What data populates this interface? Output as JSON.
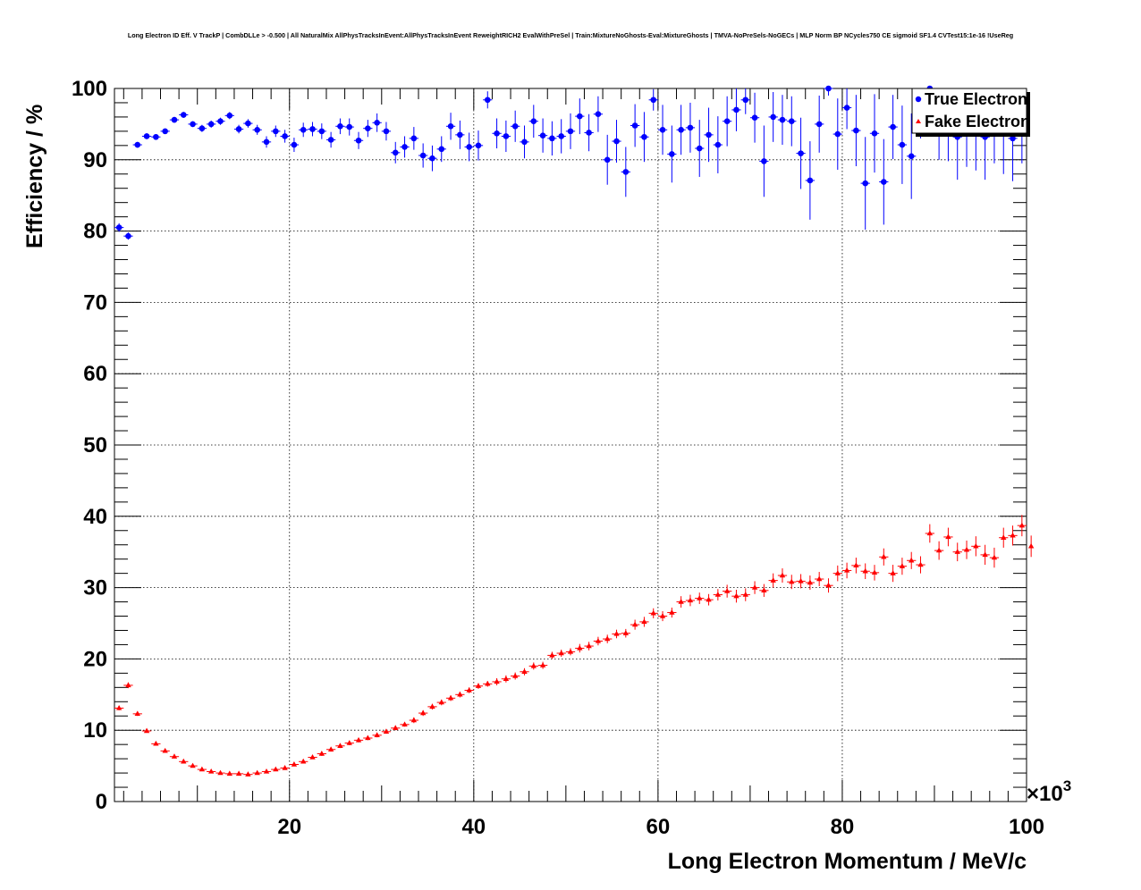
{
  "chart_data": {
    "type": "scatter",
    "title": "Long Electron ID Eff. V TrackP | CombDLLe > -0.500 | All NaturalMix AllPhysTracksInEvent:AllPhysTracksInEvent ReweightRICH2 EvalWithPreSel | Train:MixtureNoGhosts-Eval:MixtureGhosts | TMVA-NoPreSels-NoGECs | MLP Norm BP NCycles750 CE sigmoid SF1.4 CVTest15:1e-16 !UseReg",
    "xlabel": "Long Electron Momentum / MeV/c",
    "ylabel": "Efficiency / %",
    "x_multiplier_label": "×10",
    "x_multiplier_exp": "3",
    "xlim": [
      1000,
      100000
    ],
    "ylim": [
      0,
      100
    ],
    "x_ticks": [
      20000,
      40000,
      60000,
      80000,
      100000
    ],
    "x_tick_labels": [
      "20",
      "40",
      "60",
      "80",
      "100"
    ],
    "y_ticks": [
      0,
      10,
      20,
      30,
      40,
      50,
      60,
      70,
      80,
      90,
      100
    ],
    "y_tick_labels": [
      "0",
      "10",
      "20",
      "30",
      "40",
      "50",
      "60",
      "70",
      "80",
      "90",
      "100"
    ],
    "grid": true,
    "legend_position": "top-right",
    "series": [
      {
        "name": "True Electron",
        "color": "#0000ff",
        "marker": "circle",
        "x": [
          1500,
          2500,
          3500,
          4500,
          5500,
          6500,
          7500,
          8500,
          9500,
          10500,
          11500,
          12500,
          13500,
          14500,
          15500,
          16500,
          17500,
          18500,
          19500,
          20500,
          21500,
          22500,
          23500,
          24500,
          25500,
          26500,
          27500,
          28500,
          29500,
          30500,
          31500,
          32500,
          33500,
          34500,
          35500,
          36500,
          37500,
          38500,
          39500,
          40500,
          41500,
          42500,
          43500,
          44500,
          45500,
          46500,
          47500,
          48500,
          49500,
          50500,
          51500,
          52500,
          53500,
          54500,
          55500,
          56500,
          57500,
          58500,
          59500,
          60500,
          61500,
          62500,
          63500,
          64500,
          65500,
          66500,
          67500,
          68500,
          69500,
          70500,
          71500,
          72500,
          73500,
          74500,
          75500,
          76500,
          77500,
          78500,
          79500,
          80500,
          81500,
          82500,
          83500,
          84500,
          85500,
          86500,
          87500,
          88500,
          89500,
          90500,
          91500,
          92500,
          93500,
          94500,
          95500,
          96500,
          97500,
          98500,
          99500
        ],
        "y": [
          80.5,
          79.3,
          92.1,
          93.3,
          93.2,
          94.0,
          95.6,
          96.3,
          95.0,
          94.4,
          95.0,
          95.4,
          96.2,
          94.3,
          95.1,
          94.2,
          92.5,
          94.0,
          93.3,
          92.1,
          94.2,
          94.3,
          94.0,
          92.8,
          94.7,
          94.6,
          92.7,
          94.4,
          95.2,
          94.0,
          91.0,
          91.8,
          93.0,
          90.6,
          90.2,
          91.5,
          94.7,
          93.5,
          91.8,
          92.0,
          98.4,
          93.7,
          93.3,
          94.7,
          92.5,
          95.4,
          93.4,
          93.0,
          93.3,
          94.0,
          96.1,
          93.8,
          96.4,
          90.0,
          92.6,
          88.3,
          94.8,
          93.2,
          98.4,
          94.2,
          90.8,
          94.2,
          94.5,
          91.6,
          93.5,
          92.1,
          95.4,
          97.0,
          98.4,
          95.9,
          89.8,
          96.0,
          95.6,
          95.4,
          90.9,
          87.1,
          95.0,
          100.0,
          93.6,
          97.3,
          94.1,
          86.7,
          93.7,
          86.9,
          94.6,
          92.1,
          90.5,
          97.0,
          100.0,
          95.0,
          94.8,
          93.2,
          94.5,
          94.0,
          93.2,
          95.0,
          94.0,
          93.0,
          94.5
        ],
        "yerr": [
          0.6,
          0.5,
          0.4,
          0.4,
          0.4,
          0.4,
          0.4,
          0.4,
          0.4,
          0.5,
          0.5,
          0.5,
          0.5,
          0.6,
          0.6,
          0.7,
          0.8,
          0.8,
          0.9,
          1.0,
          1.0,
          1.0,
          1.1,
          1.1,
          1.1,
          1.2,
          1.2,
          1.2,
          1.3,
          1.3,
          1.5,
          1.5,
          1.6,
          1.7,
          1.8,
          1.8,
          1.9,
          2.0,
          2.0,
          2.1,
          1.2,
          2.1,
          2.2,
          2.2,
          2.3,
          2.3,
          2.4,
          2.4,
          2.4,
          2.5,
          2.5,
          2.6,
          2.5,
          3.5,
          3.0,
          3.5,
          3.0,
          3.5,
          1.5,
          3.5,
          4.0,
          3.5,
          3.5,
          4.0,
          3.8,
          4.0,
          3.5,
          3.0,
          2.0,
          3.5,
          5.0,
          3.5,
          3.5,
          3.5,
          5.0,
          5.5,
          4.0,
          1.0,
          5.0,
          3.0,
          5.0,
          6.5,
          5.5,
          6.0,
          4.5,
          5.5,
          6.0,
          4.0,
          1.0,
          5.0,
          5.0,
          6.0,
          5.5,
          5.5,
          6.0,
          5.5,
          6.0,
          6.0,
          5.0
        ]
      },
      {
        "name": "Fake Electron",
        "color": "#ff0000",
        "marker": "triangle",
        "x": [
          1500,
          2500,
          3500,
          4500,
          5500,
          6500,
          7500,
          8500,
          9500,
          10500,
          11500,
          12500,
          13500,
          14500,
          15500,
          16500,
          17500,
          18500,
          19500,
          20500,
          21500,
          22500,
          23500,
          24500,
          25500,
          26500,
          27500,
          28500,
          29500,
          30500,
          31500,
          32500,
          33500,
          34500,
          35500,
          36500,
          37500,
          38500,
          39500,
          40500,
          41500,
          42500,
          43500,
          44500,
          45500,
          46500,
          47500,
          48500,
          49500,
          50500,
          51500,
          52500,
          53500,
          54500,
          55500,
          56500,
          57500,
          58500,
          59500,
          60500,
          61500,
          62500,
          63500,
          64500,
          65500,
          66500,
          67500,
          68500,
          69500,
          70500,
          71500,
          72500,
          73500,
          74500,
          75500,
          76500,
          77500,
          78500,
          79500,
          80500,
          81500,
          82500,
          83500,
          84500,
          85500,
          86500,
          87500,
          88500,
          89500,
          90500,
          91500,
          92500,
          93500,
          94500,
          95500,
          96500,
          97500,
          98500,
          99500,
          100500
        ],
        "y": [
          13.1,
          16.3,
          12.3,
          9.9,
          8.1,
          7.1,
          6.3,
          5.6,
          5.0,
          4.5,
          4.2,
          4.0,
          3.9,
          3.9,
          3.8,
          4.0,
          4.2,
          4.5,
          4.7,
          5.2,
          5.6,
          6.2,
          6.7,
          7.3,
          7.8,
          8.2,
          8.6,
          8.9,
          9.3,
          9.8,
          10.3,
          10.8,
          11.4,
          12.4,
          13.3,
          13.9,
          14.5,
          15.0,
          15.6,
          16.2,
          16.5,
          16.8,
          17.2,
          17.6,
          18.2,
          19.0,
          19.1,
          20.5,
          20.8,
          21.0,
          21.5,
          21.8,
          22.5,
          22.8,
          23.5,
          23.6,
          24.8,
          25.2,
          26.4,
          26.0,
          26.5,
          28.0,
          28.2,
          28.5,
          28.3,
          29.0,
          29.5,
          28.8,
          29.0,
          30.0,
          29.6,
          31.0,
          31.7,
          30.8,
          30.9,
          30.7,
          31.2,
          30.3,
          32.0,
          32.4,
          33.1,
          32.3,
          32.1,
          34.3,
          32.0,
          33.0,
          33.8,
          33.2,
          37.6,
          35.2,
          37.1,
          35.0,
          35.3,
          35.8,
          34.6,
          34.2,
          37.0,
          37.3,
          38.7,
          35.8
        ],
        "yerr": [
          0.3,
          0.4,
          0.3,
          0.2,
          0.2,
          0.2,
          0.2,
          0.2,
          0.2,
          0.2,
          0.2,
          0.2,
          0.2,
          0.2,
          0.2,
          0.2,
          0.2,
          0.2,
          0.2,
          0.2,
          0.2,
          0.2,
          0.3,
          0.3,
          0.3,
          0.3,
          0.3,
          0.3,
          0.3,
          0.3,
          0.3,
          0.3,
          0.4,
          0.4,
          0.4,
          0.4,
          0.4,
          0.4,
          0.4,
          0.4,
          0.4,
          0.5,
          0.5,
          0.5,
          0.5,
          0.5,
          0.5,
          0.5,
          0.5,
          0.5,
          0.6,
          0.6,
          0.6,
          0.6,
          0.6,
          0.6,
          0.7,
          0.7,
          0.7,
          0.7,
          0.7,
          0.8,
          0.8,
          0.8,
          0.8,
          0.8,
          0.9,
          0.9,
          0.9,
          0.9,
          0.9,
          1.0,
          1.0,
          1.0,
          1.0,
          1.0,
          1.0,
          1.0,
          1.1,
          1.1,
          1.1,
          1.1,
          1.1,
          1.2,
          1.2,
          1.2,
          1.2,
          1.2,
          1.3,
          1.3,
          1.3,
          1.3,
          1.3,
          1.4,
          1.4,
          1.4,
          1.4,
          1.4,
          1.5,
          1.5
        ]
      }
    ]
  }
}
